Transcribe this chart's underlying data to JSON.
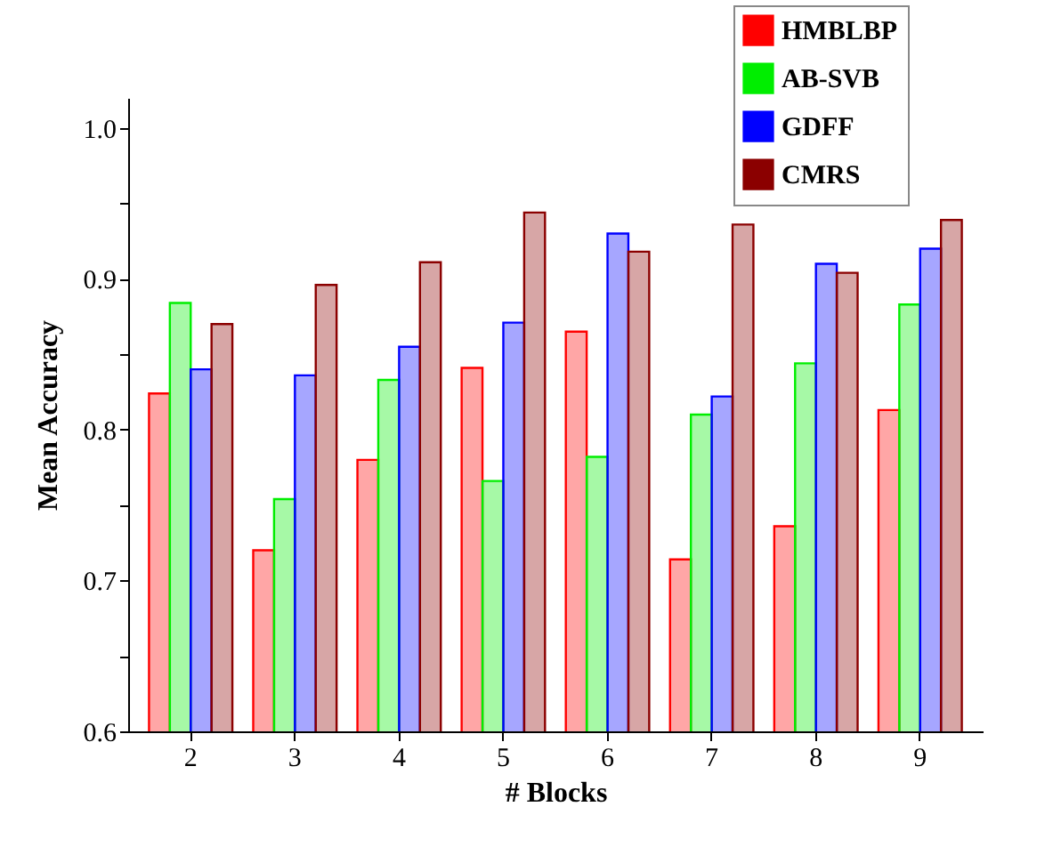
{
  "chart_data": {
    "type": "bar",
    "xlabel": "# Blocks",
    "ylabel": "Mean Accuracy",
    "categories": [
      "2",
      "3",
      "4",
      "5",
      "6",
      "7",
      "8",
      "9"
    ],
    "series": [
      {
        "name": "HMBLBP",
        "color": "#ff0000",
        "values": [
          0.824,
          0.72,
          0.78,
          0.841,
          0.865,
          0.714,
          0.736,
          0.813
        ]
      },
      {
        "name": "AB-SVB",
        "color": "#00ee00",
        "values": [
          0.884,
          0.754,
          0.833,
          0.766,
          0.782,
          0.81,
          0.844,
          0.883
        ]
      },
      {
        "name": "GDFF",
        "color": "#0000ff",
        "values": [
          0.84,
          0.836,
          0.855,
          0.871,
          0.93,
          0.822,
          0.91,
          0.92
        ]
      },
      {
        "name": "CMRS",
        "color": "#8b0000",
        "values": [
          0.87,
          0.896,
          0.911,
          0.944,
          0.918,
          0.936,
          0.904,
          0.939
        ]
      }
    ],
    "ylim": [
      0.6,
      1.02
    ],
    "yticks": [
      {
        "value": 0.6,
        "label": "0.6"
      },
      {
        "value": 0.65,
        "label": null
      },
      {
        "value": 0.7,
        "label": "0.7"
      },
      {
        "value": 0.75,
        "label": null
      },
      {
        "value": 0.8,
        "label": "0.8"
      },
      {
        "value": 0.85,
        "label": null
      },
      {
        "value": 0.9,
        "label": "0.9"
      },
      {
        "value": 0.95,
        "label": null
      },
      {
        "value": 1.0,
        "label": "1.0"
      }
    ],
    "grid": false,
    "legend": "top right"
  }
}
